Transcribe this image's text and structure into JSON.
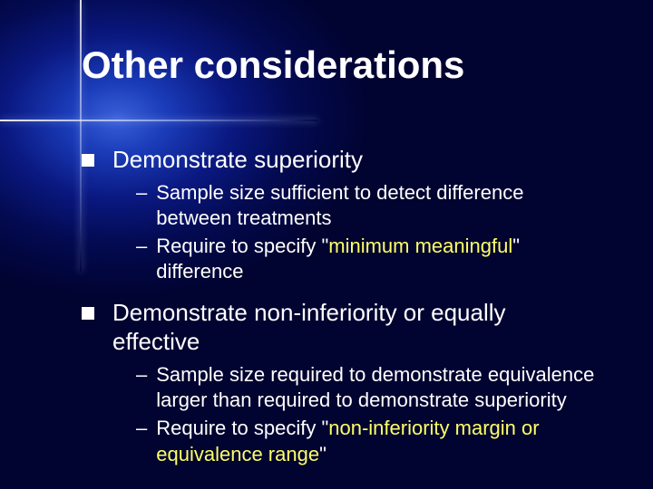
{
  "colors": {
    "background_center": "#3a5fd8",
    "background_outer": "#010330",
    "text": "#ffffff",
    "highlight": "#ffff66",
    "bullet": "#ffffff"
  },
  "typography": {
    "title_fontsize": 42,
    "bullet_fontsize": 26,
    "sub_fontsize": 22,
    "font_family": "Verdana"
  },
  "title": "Other considerations",
  "bullets": [
    {
      "text": "Demonstrate superiority",
      "subs": [
        {
          "pre": "Sample size sufficient to detect difference between treatments",
          "hl": "",
          "post": ""
        },
        {
          "pre": "Require to specify \"",
          "hl": "minimum meaningful",
          "post": "\" difference"
        }
      ]
    },
    {
      "text": "Demonstrate non-inferiority or equally effective",
      "subs": [
        {
          "pre": "Sample size required to demonstrate equivalence larger than required to demonstrate superiority",
          "hl": "",
          "post": ""
        },
        {
          "pre": "Require to specify \"",
          "hl": "non-inferiority margin or equivalence range",
          "post": "\""
        }
      ]
    }
  ]
}
